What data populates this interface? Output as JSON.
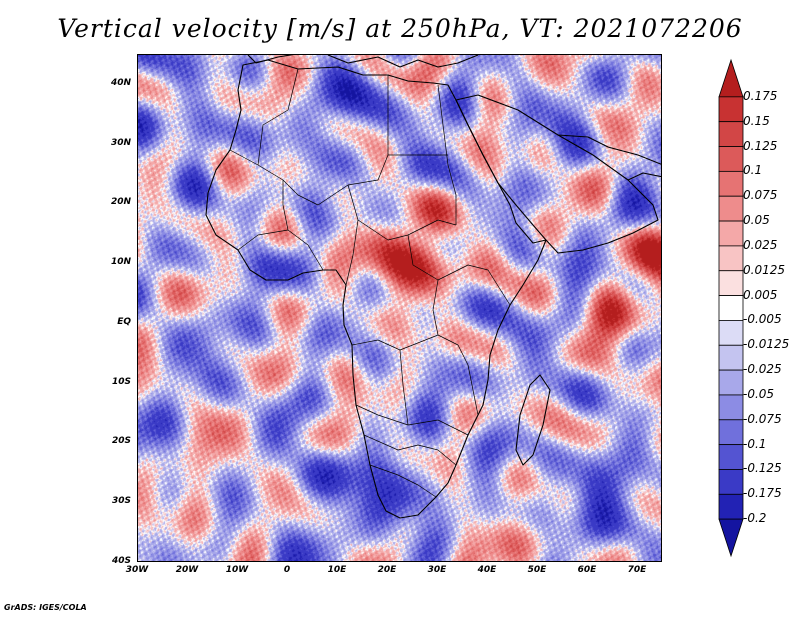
{
  "title": "Vertical velocity [m/s] at 250hPa, VT: 2021072206",
  "credit": "GrADS: IGES/COLA",
  "chart_data": {
    "type": "heatmap",
    "title": "Vertical velocity [m/s] at 250hPa, VT: 2021072206",
    "variable": "Vertical velocity",
    "units": "m/s",
    "level": "250hPa",
    "valid_time": "2021072206",
    "lon_range": [
      -30,
      75
    ],
    "lat_range": [
      -40,
      45
    ],
    "x_ticks": [
      {
        "v": -30,
        "label": "30W"
      },
      {
        "v": -20,
        "label": "20W"
      },
      {
        "v": -10,
        "label": "10W"
      },
      {
        "v": 0,
        "label": "0"
      },
      {
        "v": 10,
        "label": "10E"
      },
      {
        "v": 20,
        "label": "20E"
      },
      {
        "v": 30,
        "label": "30E"
      },
      {
        "v": 40,
        "label": "40E"
      },
      {
        "v": 50,
        "label": "50E"
      },
      {
        "v": 60,
        "label": "60E"
      },
      {
        "v": 70,
        "label": "70E"
      }
    ],
    "y_ticks": [
      {
        "v": 40,
        "label": "40N"
      },
      {
        "v": 30,
        "label": "30N"
      },
      {
        "v": 20,
        "label": "20N"
      },
      {
        "v": 10,
        "label": "10N"
      },
      {
        "v": 0,
        "label": "EQ"
      },
      {
        "v": -10,
        "label": "10S"
      },
      {
        "v": -20,
        "label": "20S"
      },
      {
        "v": -30,
        "label": "30S"
      },
      {
        "v": -40,
        "label": "40S"
      }
    ],
    "colorbar": {
      "labels": [
        "0.175",
        "0.15",
        "0.125",
        "0.1",
        "0.075",
        "0.05",
        "0.025",
        "0.0125",
        "0.005",
        "-0.005",
        "-0.0125",
        "-0.025",
        "-0.05",
        "-0.075",
        "-0.1",
        "-0.125",
        "-0.175",
        "-0.2"
      ],
      "colors": [
        "#b41e1e",
        "#c83232",
        "#d24646",
        "#dc5a5a",
        "#e67373",
        "#ee8c8c",
        "#f4a8a8",
        "#f8c4c4",
        "#fbe0e0",
        "#ffffff",
        "#dcdcf6",
        "#c4c4f0",
        "#a8a8ea",
        "#8c8ce4",
        "#7070dc",
        "#5454d2",
        "#3a3ac6",
        "#2222b4",
        "#1414a0"
      ]
    },
    "hotspots": [
      {
        "lon": 27,
        "lat": 10,
        "w": 0.2
      },
      {
        "lon": 18,
        "lat": 13,
        "w": 0.1
      },
      {
        "lon": 65,
        "lat": 2,
        "w": 0.15
      },
      {
        "lon": 73,
        "lat": 12,
        "w": 0.15
      },
      {
        "lon": 42,
        "lat": 43,
        "w": 0.08
      },
      {
        "lon": 10,
        "lat": 36,
        "w": -0.12
      },
      {
        "lon": 63,
        "lat": -27,
        "w": -0.18
      },
      {
        "lon": 22,
        "lat": -30,
        "w": -0.14
      },
      {
        "lon": 20,
        "lat": 15,
        "w": 0.06
      },
      {
        "lon": -15,
        "lat": -25,
        "w": 0.06
      },
      {
        "lon": -20,
        "lat": 30,
        "w": -0.1
      },
      {
        "lon": 5,
        "lat": -25,
        "w": -0.12
      },
      {
        "lon": 50,
        "lat": 35,
        "w": -0.08
      },
      {
        "lon": 35,
        "lat": -38,
        "w": 0.08
      }
    ]
  }
}
